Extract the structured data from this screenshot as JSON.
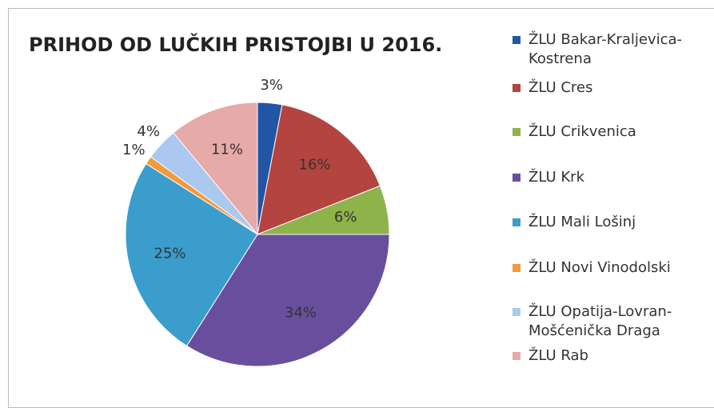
{
  "chart_data": {
    "type": "pie",
    "title": "PRIHOD OD LUČKIH PRISTOJBI U 2016.",
    "categories": [
      "ŽLU Bakar-Kraljevica-Kostrena",
      "ŽLU Cres",
      "ŽLU Crikvenica",
      "ŽLU Krk",
      "ŽLU Mali Lošinj",
      "ŽLU Novi Vinodolski",
      "ŽLU Opatija-Lovran-Mošćenička Draga",
      "ŽLU Rab"
    ],
    "values": [
      3,
      16,
      6,
      34,
      25,
      1,
      4,
      11
    ],
    "value_labels": [
      "3%",
      "16%",
      "6%",
      "34%",
      "25%",
      "1%",
      "4%",
      "11%"
    ],
    "colors": [
      "#2355a5",
      "#b4443f",
      "#8eb34b",
      "#6a4e9e",
      "#3a9dcc",
      "#f29a3d",
      "#abc8ef",
      "#e6aaa9"
    ],
    "legend": "right"
  }
}
